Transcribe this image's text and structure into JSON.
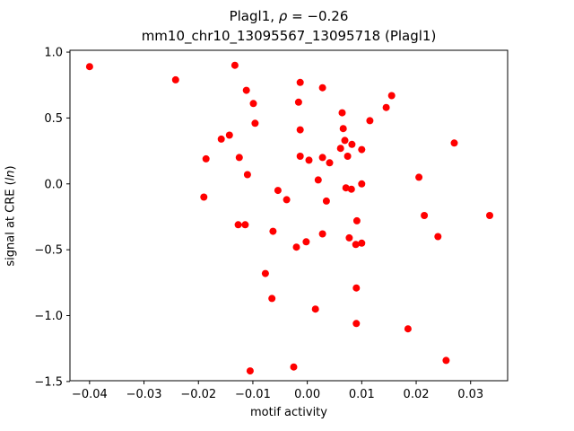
{
  "title": {
    "line1_prefix": "Plagl1, ",
    "line1_rho": "ρ",
    "line1_suffix": " = −0.26",
    "line2": "mm10_chr10_13095567_13095718 (Plagl1)"
  },
  "axes": {
    "xlabel": "motif activity",
    "ylabel_prefix": "signal at CRE (",
    "ylabel_italic": "ln",
    "ylabel_suffix": ")"
  },
  "chart_data": {
    "type": "scatter",
    "title": "Plagl1, ρ = −0.26",
    "subtitle": "mm10_chr10_13095567_13095718 (Plagl1)",
    "xlabel": "motif activity",
    "ylabel": "signal at CRE (ln)",
    "marker_color": "#ff0000",
    "marker_radius": 4,
    "xlim": [
      -0.0436,
      0.0368
    ],
    "ylim": [
      -1.494,
      1.014
    ],
    "xticks": {
      "values": [
        -0.04,
        -0.03,
        -0.02,
        -0.01,
        0.0,
        0.01,
        0.02,
        0.03
      ],
      "labels": [
        "−0.04",
        "−0.03",
        "−0.02",
        "−0.01",
        "0.00",
        "0.01",
        "0.02",
        "0.03"
      ]
    },
    "yticks": {
      "values": [
        1.0,
        0.5,
        0.0,
        -0.5,
        -1.0,
        -1.5
      ],
      "labels": [
        "1.0",
        "0.5",
        "0.0",
        "−0.5",
        "−1.0",
        "−1.5"
      ]
    },
    "grid": false,
    "legend": null,
    "points": [
      [
        -0.04,
        0.89
      ],
      [
        -0.0242,
        0.79
      ],
      [
        -0.0133,
        0.9
      ],
      [
        -0.0112,
        0.71
      ],
      [
        -0.0099,
        0.61
      ],
      [
        -0.0013,
        0.77
      ],
      [
        -0.0016,
        0.62
      ],
      [
        0.0028,
        0.73
      ],
      [
        0.0155,
        0.67
      ],
      [
        0.0145,
        0.58
      ],
      [
        -0.0096,
        0.46
      ],
      [
        0.0064,
        0.54
      ],
      [
        0.0115,
        0.48
      ],
      [
        -0.0013,
        0.41
      ],
      [
        0.0066,
        0.42
      ],
      [
        -0.0158,
        0.34
      ],
      [
        -0.0143,
        0.37
      ],
      [
        0.0069,
        0.33
      ],
      [
        0.0082,
        0.3
      ],
      [
        0.0061,
        0.27
      ],
      [
        0.01,
        0.26
      ],
      [
        0.027,
        0.31
      ],
      [
        -0.0186,
        0.19
      ],
      [
        -0.0125,
        0.2
      ],
      [
        -0.0013,
        0.21
      ],
      [
        0.0003,
        0.18
      ],
      [
        0.0028,
        0.2
      ],
      [
        0.0041,
        0.16
      ],
      [
        0.0074,
        0.21
      ],
      [
        -0.011,
        0.07
      ],
      [
        0.002,
        0.03
      ],
      [
        0.0071,
        -0.03
      ],
      [
        0.0081,
        -0.04
      ],
      [
        0.01,
        0.0
      ],
      [
        0.0205,
        0.05
      ],
      [
        -0.019,
        -0.1
      ],
      [
        -0.0054,
        -0.05
      ],
      [
        -0.0038,
        -0.12
      ],
      [
        0.0035,
        -0.13
      ],
      [
        -0.0127,
        -0.31
      ],
      [
        -0.0114,
        -0.31
      ],
      [
        0.0091,
        -0.28
      ],
      [
        -0.0063,
        -0.36
      ],
      [
        0.0028,
        -0.38
      ],
      [
        0.0077,
        -0.41
      ],
      [
        0.0089,
        -0.46
      ],
      [
        0.01,
        -0.45
      ],
      [
        -0.0002,
        -0.44
      ],
      [
        -0.002,
        -0.48
      ],
      [
        0.0215,
        -0.24
      ],
      [
        0.0335,
        -0.24
      ],
      [
        0.024,
        -0.4
      ],
      [
        -0.0077,
        -0.68
      ],
      [
        0.009,
        -0.79
      ],
      [
        -0.0065,
        -0.87
      ],
      [
        0.0015,
        -0.95
      ],
      [
        0.009,
        -1.06
      ],
      [
        0.0185,
        -1.1
      ],
      [
        0.0255,
        -1.34
      ],
      [
        -0.0105,
        -1.42
      ],
      [
        -0.0025,
        -1.39
      ]
    ]
  }
}
